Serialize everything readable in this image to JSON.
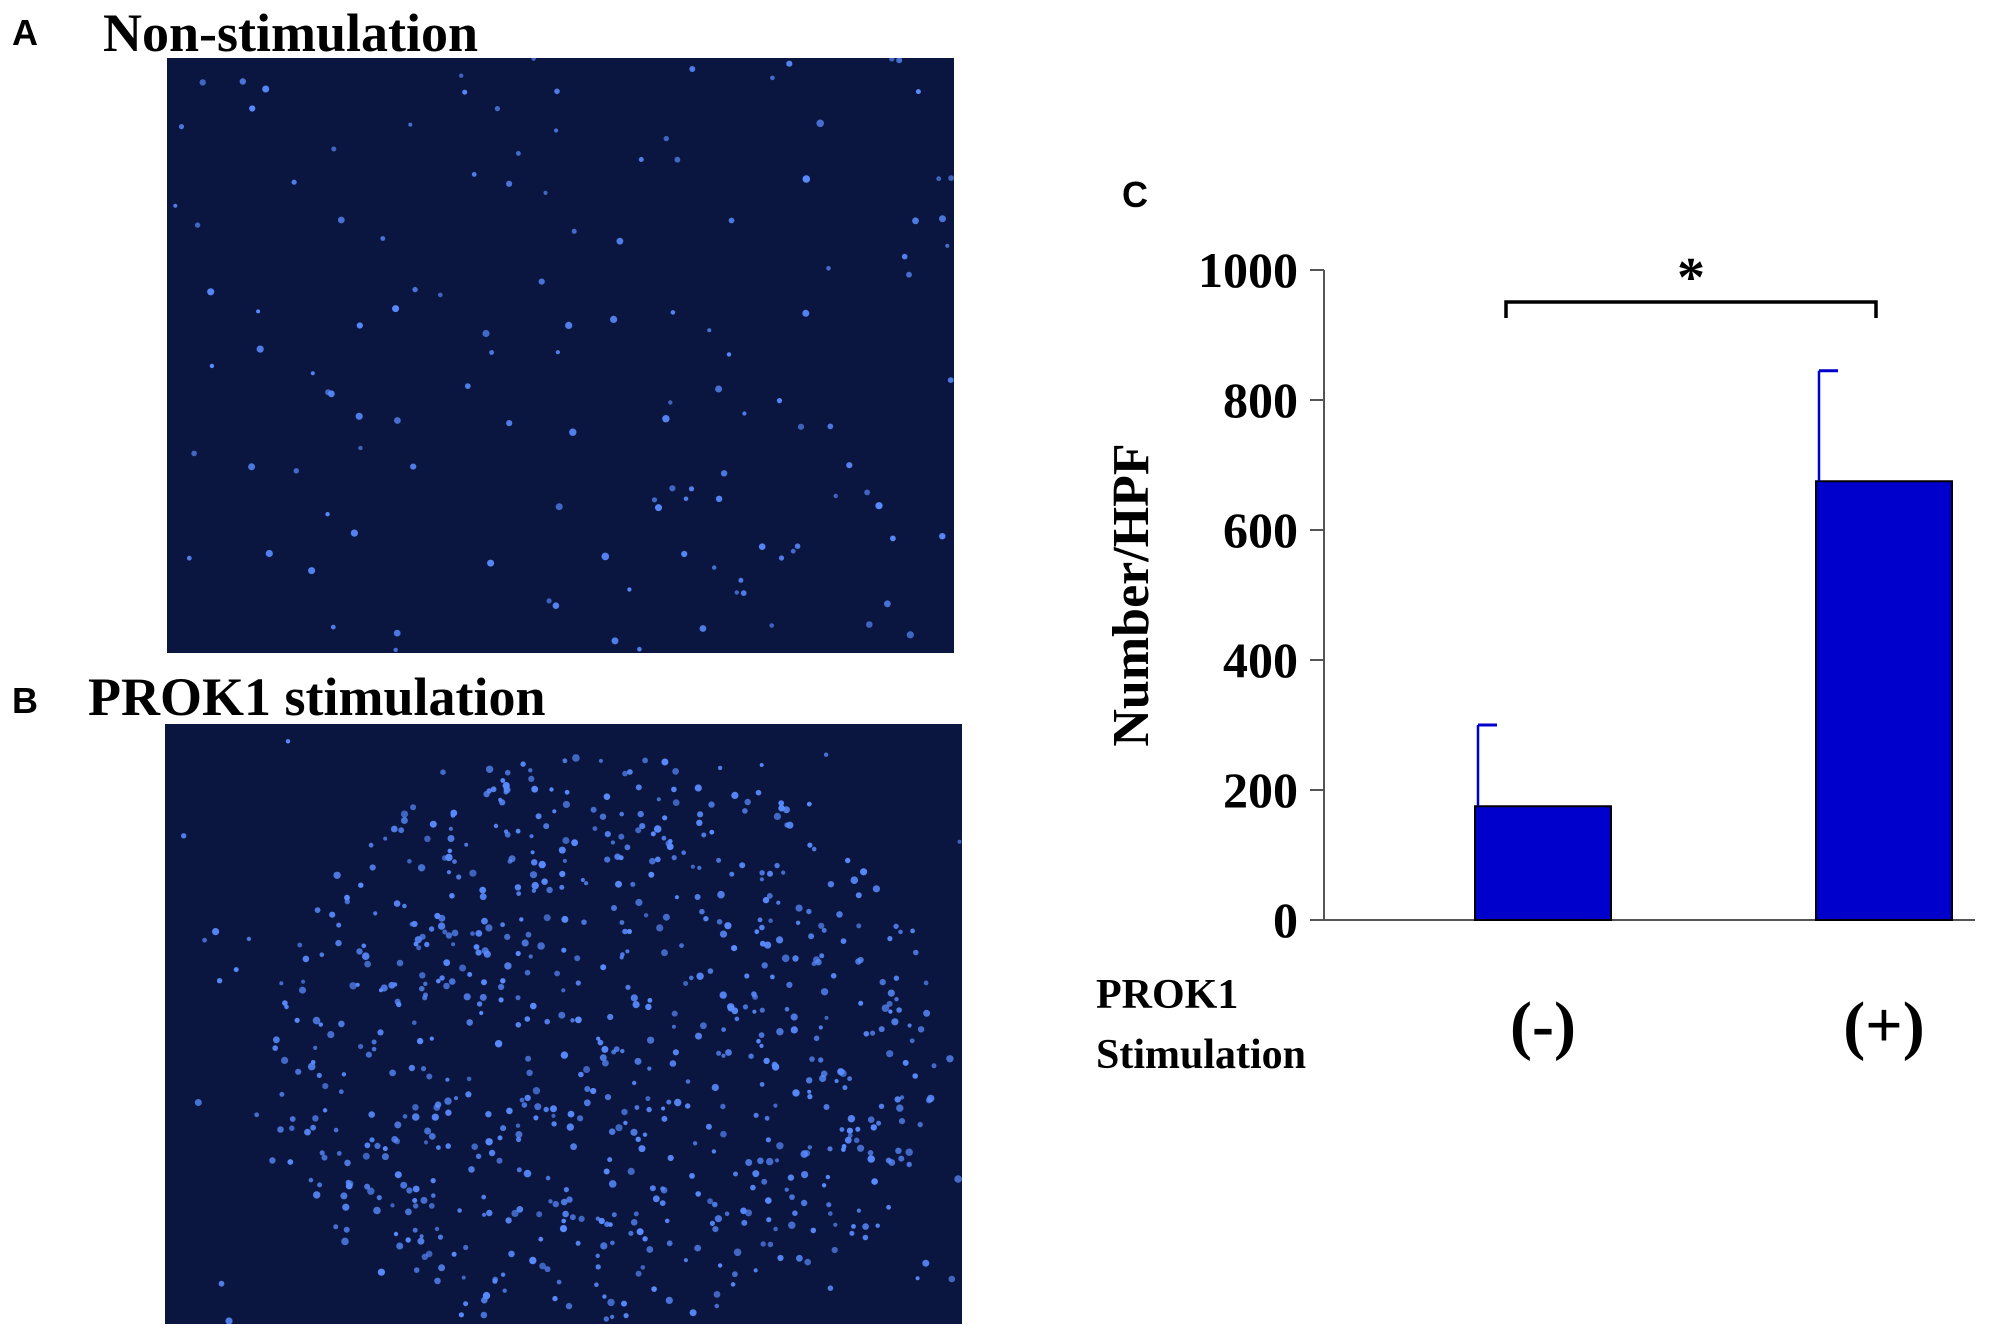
{
  "panels": {
    "a": {
      "letter": "A",
      "title": "Non-stimulation"
    },
    "b": {
      "letter": "B",
      "title": "PROK1 stimulation"
    },
    "c": {
      "letter": "C"
    }
  },
  "colors": {
    "bar": "#0000cc",
    "micrograph_bg": "#0b1640",
    "nuclei": "#5a8cff"
  },
  "chart_data": {
    "type": "bar",
    "categories": [
      "(-)",
      "(+)"
    ],
    "values": [
      175,
      675
    ],
    "error_bars": [
      125,
      170
    ],
    "ylabel": "Number/HPF",
    "xlabel": "PROK1\nStimulation",
    "xlabel_lines": [
      "PROK1",
      "Stimulation"
    ],
    "ylim": [
      0,
      1000
    ],
    "yticks": [
      0,
      200,
      400,
      600,
      800,
      1000
    ],
    "significance": {
      "between": [
        0,
        1
      ],
      "label": "*"
    },
    "grid": false,
    "legend": "none"
  }
}
